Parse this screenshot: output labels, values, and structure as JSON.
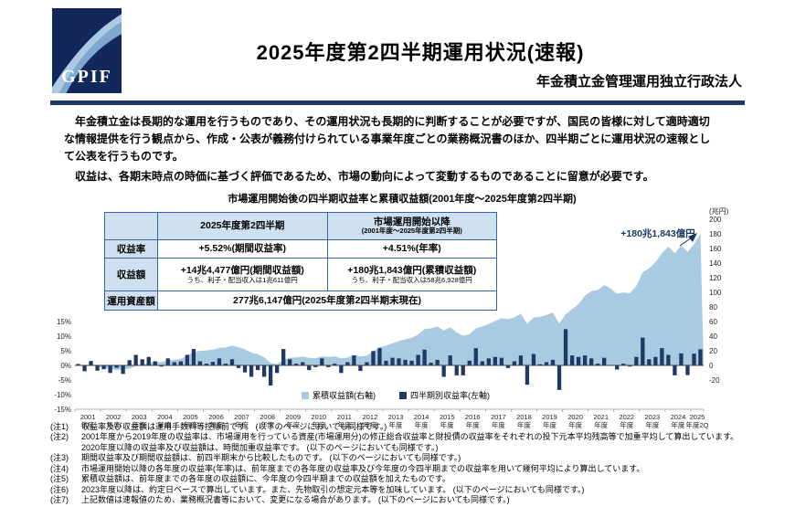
{
  "header": {
    "logo_text": "GPIF",
    "title": "2025年度第2四半期運用状況(速報)",
    "org": "年金積立金管理運用独立行政法人"
  },
  "intro": {
    "p1": "年金積立金は長期的な運用を行うものであり、その運用状況も長期的に判断することが必要ですが、国民の皆様に対して適時適切な情報提供を行う観点から、作成・公表が義務付けられている事業年度ごとの業務概況書のほか、四半期ごとに運用状況の速報として公表を行うものです。",
    "p2": "収益は、各期末時点の時価に基づく評価であるため、市場の動向によって変動するものであることに留意が必要です。"
  },
  "table": {
    "h_col1": "2025年度第2四半期",
    "h_col2a": "市場運用開始以降",
    "h_col2b": "(2001年度〜2025年度第2四半期)",
    "r1_label": "収益率",
    "r1_c1": "+5.52%(期間収益率)",
    "r1_c2": "+4.51%(年率)",
    "r2_label": "収益額",
    "r2_c1a": "+14兆4,477億円(期間収益額)",
    "r2_c1b": "うち、利子・配当収入は1兆611億円",
    "r2_c2a": "+180兆1,843億円(累積収益額)",
    "r2_c2b": "うち、利子・配当収入は58兆6,928億円",
    "r3_label": "運用資産額",
    "r3_value": "277兆6,147億円(2025年度第2四半期末現在)"
  },
  "chart_data": {
    "type": "combo",
    "title": "市場運用開始後の四半期収益率と累積収益額(2001年度〜2025年度第2四半期)",
    "legend_position": "inside-bottom",
    "left_axis": {
      "ticks": [
        "15%",
        "10%",
        "5%",
        "0%",
        "-5%",
        "-10%",
        "-15%"
      ],
      "min": -15,
      "max": 15,
      "unit": "%"
    },
    "right_axis": {
      "label": "(兆円)",
      "ticks": [
        200,
        180,
        160,
        140,
        120,
        100,
        80,
        60,
        40,
        20,
        0,
        -20
      ],
      "min": -20,
      "max": 200
    },
    "x_labels": [
      {
        "t": "2001",
        "b": "年度"
      },
      {
        "t": "2002",
        "b": "年度"
      },
      {
        "t": "2003",
        "b": "年度"
      },
      {
        "t": "2004",
        "b": "年度"
      },
      {
        "t": "2005",
        "b": "年度"
      },
      {
        "t": "2006",
        "b": "年度"
      },
      {
        "t": "2007",
        "b": "年度"
      },
      {
        "t": "2008",
        "b": "年度"
      },
      {
        "t": "2009",
        "b": "年度"
      },
      {
        "t": "2010",
        "b": "年度"
      },
      {
        "t": "2011",
        "b": "年度"
      },
      {
        "t": "2012",
        "b": "年度"
      },
      {
        "t": "2013",
        "b": "年度"
      },
      {
        "t": "2014",
        "b": "年度"
      },
      {
        "t": "2015",
        "b": "年度"
      },
      {
        "t": "2016",
        "b": "年度"
      },
      {
        "t": "2017",
        "b": "年度"
      },
      {
        "t": "2018",
        "b": "年度"
      },
      {
        "t": "2019",
        "b": "年度"
      },
      {
        "t": "2020",
        "b": "年度"
      },
      {
        "t": "2021",
        "b": "年度"
      },
      {
        "t": "2022",
        "b": "年度"
      },
      {
        "t": "2023",
        "b": "年度"
      },
      {
        "t": "2024",
        "b": "年度"
      },
      {
        "t": "2025",
        "b": "年度2Q"
      }
    ],
    "series": [
      {
        "name": "累積収益額(右軸)",
        "type": "area",
        "axis": "right",
        "unit": "兆円",
        "color": "#a9cbe2",
        "values": [
          0.6,
          -1.5,
          0.1,
          -1.8,
          -3.0,
          -5.4,
          -6.1,
          -5.9,
          -4.2,
          -0.9,
          1.0,
          3.6,
          4.9,
          4.5,
          6.7,
          7.7,
          9.0,
          13.0,
          18.5,
          20.0,
          20.5,
          21.5,
          24.0,
          24.5,
          27.0,
          25.0,
          22.0,
          17.5,
          15.5,
          11.0,
          3.5,
          1.5,
          8.0,
          10.5,
          11.0,
          12.2,
          10.5,
          9.8,
          12.5,
          11.8,
          12.5,
          9.5,
          10.7,
          14.4,
          12.2,
          13.4,
          18.9,
          25.2,
          27.0,
          30.2,
          33.2,
          35.6,
          37.7,
          42.3,
          49.6,
          50.7,
          53.2,
          47.6,
          52.2,
          45.4,
          40.6,
          42.7,
          50.6,
          53.4,
          56.5,
          60.8,
          64.7,
          63.4,
          65.6,
          71.0,
          56.8,
          65.6,
          66.6,
          69.0,
          72.2,
          57.5,
          70.0,
          77.0,
          83.7,
          95.3,
          101.6,
          103.2,
          109.9,
          105.4,
          98.1,
          99.9,
          98.8,
          108.4,
          127.4,
          132.9,
          141.0,
          153.6,
          162.5,
          153.4,
          164.1,
          155.3,
          165.7,
          180.2
        ]
      },
      {
        "name": "四半期別収益率(左軸)",
        "type": "bar",
        "axis": "left",
        "unit": "%",
        "color": "#1f3864",
        "values": [
          0.5,
          -2.0,
          1.5,
          -1.8,
          -1.3,
          -2.6,
          -0.8,
          -2.9,
          1.8,
          3.6,
          2.1,
          2.9,
          1.4,
          -0.4,
          2.4,
          1.1,
          1.4,
          3.6,
          5.6,
          1.4,
          0.6,
          1.2,
          2.4,
          0.6,
          2.1,
          -0.9,
          -2.4,
          -3.9,
          -1.6,
          -3.9,
          -6.9,
          -2.6,
          5.6,
          2.1,
          0.6,
          1.1,
          -1.6,
          -0.6,
          2.4,
          -0.6,
          0.6,
          -2.6,
          1.1,
          3.4,
          -1.9,
          1.1,
          4.9,
          5.9,
          1.6,
          2.6,
          2.4,
          1.9,
          1.6,
          3.6,
          5.4,
          0.9,
          1.9,
          -3.9,
          3.4,
          -3.4,
          -3.4,
          1.6,
          5.9,
          1.4,
          2.4,
          2.9,
          2.6,
          -0.9,
          1.4,
          3.4,
          -6.6,
          3.9,
          0.4,
          1.1,
          1.9,
          -8.4,
          12.4,
          3.4,
          2.9,
          3.4,
          2.4,
          0.6,
          2.6,
          0.1,
          -1.4,
          0.6,
          -0.4,
          2.9,
          9.5,
          2.1,
          2.9,
          5.9,
          3.6,
          -3.4,
          4.1,
          -3.3,
          4.0,
          5.52
        ]
      }
    ],
    "annotation": {
      "text": "+180兆1,843億円",
      "value": 180.1843
    }
  },
  "notes": [
    {
      "label": "(注1)",
      "text": "収益率及び収益額は運用手数料等控除前です。 (以下のページにおいても同様です。)"
    },
    {
      "label": "(注2)",
      "text": "2001年度から2019年度の収益率は、市場運用を行っている資産(市場運用分)の修正総合収益率と財投債の収益率をそれぞれの投下元本平均残高等で加重平均して算出しています。2020年度以降の収益率及び収益額は、時間加重収益率です。 (以下のページにおいても同様です。)"
    },
    {
      "label": "(注3)",
      "text": "期間収益率及び期間収益額は、前四半期末から比較したものです。 (以下のページにおいても同様です。)"
    },
    {
      "label": "(注4)",
      "text": "市場運用開始以降の各年度の収益率(年率)は、前年度までの各年度の収益率及び今年度の今四半期までの収益率を用いて幾何平均により算出しています。"
    },
    {
      "label": "(注5)",
      "text": "累積収益額は、前年度までの各年度の収益額に、今年度の今四半期までの収益額を加えたものです。"
    },
    {
      "label": "(注6)",
      "text": "2023年度以降は、約定日ベースで算出しています。また、先物取引の想定元本等を加味しています。 (以下のページにおいても同様です。)"
    },
    {
      "label": "(注7)",
      "text": "上記数値は速報値のため、業務概況書等において、変更になる場合があります。 (以下のページにおいても同様です。)"
    }
  ],
  "colors": {
    "navy": "#17365d",
    "bar": "#1f3864",
    "area": "#a9cbe2",
    "table_border": "#3465a8",
    "table_header_bg": "#cfe0f1"
  }
}
